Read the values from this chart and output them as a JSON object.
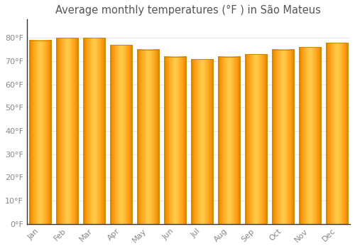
{
  "title": "Average monthly temperatures (°F ) in São Mateus",
  "months": [
    "Jan",
    "Feb",
    "Mar",
    "Apr",
    "May",
    "Jun",
    "Jul",
    "Aug",
    "Sep",
    "Oct",
    "Nov",
    "Dec"
  ],
  "values": [
    79,
    80,
    80,
    77,
    75,
    72,
    71,
    72,
    73,
    75,
    76,
    78
  ],
  "bar_color_main": "#FFA500",
  "bar_color_light": "#FFD966",
  "bar_color_dark": "#E08C00",
  "bar_edge_color": "#CC8800",
  "ylim": [
    0,
    88
  ],
  "yticks": [
    0,
    10,
    20,
    30,
    40,
    50,
    60,
    70,
    80
  ],
  "ytick_labels": [
    "0°F",
    "10°F",
    "20°F",
    "30°F",
    "40°F",
    "50°F",
    "60°F",
    "70°F",
    "80°F"
  ],
  "background_color": "#FFFFFF",
  "grid_color": "#E8E8E8",
  "title_fontsize": 10.5,
  "tick_fontsize": 8,
  "bar_width": 0.82
}
